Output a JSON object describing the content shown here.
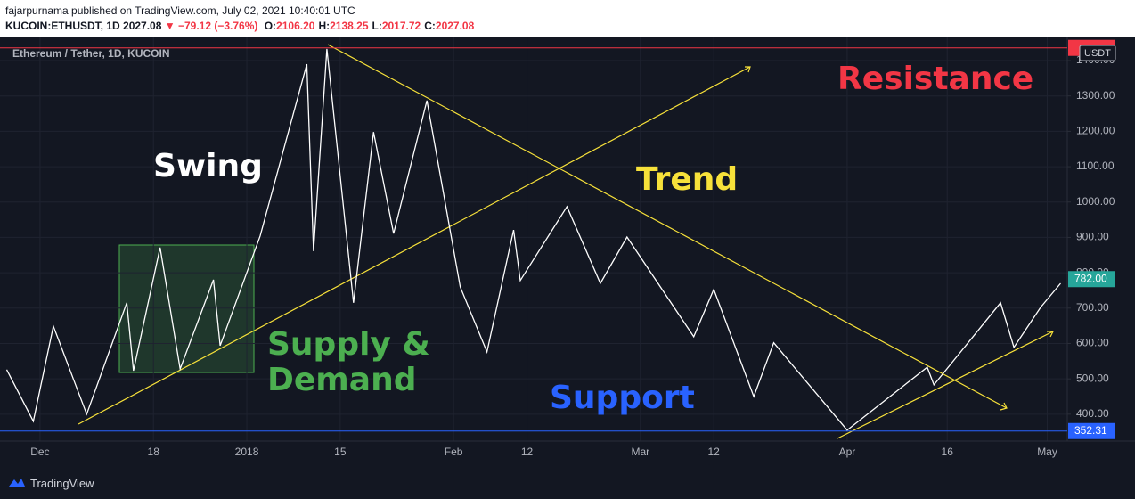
{
  "header": {
    "publisher": "fajarpurnama published on TradingView.com, July 02, 2021 10:40:01 UTC",
    "symbol": "KUCOIN:ETHUSDT, 1D",
    "price": "2027.08",
    "change": "▼ −79.12 (−3.76%)",
    "ohlc": [
      {
        "key": "O:",
        "value": "2106.20"
      },
      {
        "key": "H:",
        "value": "2138.25"
      },
      {
        "key": "L:",
        "value": "2017.72"
      },
      {
        "key": "C:",
        "value": "2027.08"
      }
    ]
  },
  "chart_data": {
    "type": "line",
    "title": "Ethereum / Tether, 1D, KUCOIN",
    "currency": "USDT",
    "color": "#ffffff",
    "x": [
      "2017-11-26",
      "2017-11-30",
      "2017-12-03",
      "2017-12-08",
      "2017-12-14",
      "2017-12-15",
      "2017-12-19",
      "2017-12-22",
      "2017-12-27",
      "2017-12-28",
      "2018-01-03",
      "2018-01-10",
      "2018-01-11",
      "2018-01-13",
      "2018-01-17",
      "2018-01-20",
      "2018-01-23",
      "2018-01-28",
      "2018-02-02",
      "2018-02-06",
      "2018-02-10",
      "2018-02-11",
      "2018-02-18",
      "2018-02-23",
      "2018-02-27",
      "2018-03-09",
      "2018-03-12",
      "2018-03-18",
      "2018-03-21",
      "2018-04-01",
      "2018-04-13",
      "2018-04-14",
      "2018-04-24",
      "2018-04-26",
      "2018-04-30",
      "2018-05-03"
    ],
    "values": [
      526,
      380,
      649,
      400,
      715,
      523,
      871,
      528,
      780,
      594,
      904,
      1390,
      861,
      1433,
      715,
      1198,
      911,
      1287,
      760,
      576,
      921,
      778,
      987,
      770,
      901,
      619,
      753,
      450,
      602,
      355,
      533,
      483,
      715,
      589,
      702,
      770
    ],
    "xlim": [
      "2017-11-25",
      "2018-05-04"
    ],
    "xticks": [
      {
        "value": "2017-12-01",
        "label": "Dec"
      },
      {
        "value": "2017-12-18",
        "label": "18"
      },
      {
        "value": "2018-01-01",
        "label": "2018"
      },
      {
        "value": "2018-01-15",
        "label": "15"
      },
      {
        "value": "2018-02-01",
        "label": "Feb"
      },
      {
        "value": "2018-02-12",
        "label": "12"
      },
      {
        "value": "2018-03-01",
        "label": "Mar"
      },
      {
        "value": "2018-03-12",
        "label": "12"
      },
      {
        "value": "2018-04-01",
        "label": "Apr"
      },
      {
        "value": "2018-04-16",
        "label": "16"
      },
      {
        "value": "2018-05-01",
        "label": "May"
      }
    ],
    "ylim": [
      324,
      1458
    ],
    "yticks": [
      {
        "value": 400,
        "label": "400.00"
      },
      {
        "value": 500,
        "label": "500.00"
      },
      {
        "value": 600,
        "label": "600.00"
      },
      {
        "value": 700,
        "label": "700.00"
      },
      {
        "value": 800,
        "label": "800.00"
      },
      {
        "value": 900,
        "label": "900.00"
      },
      {
        "value": 1000,
        "label": "1000.00"
      },
      {
        "value": 1100,
        "label": "1100.00"
      },
      {
        "value": 1200,
        "label": "1200.00"
      },
      {
        "value": 1300,
        "label": "1300.00"
      },
      {
        "value": 1400,
        "label": "1400.00"
      }
    ],
    "grid": true,
    "resistance": {
      "value": 1436,
      "color": "#f23645"
    },
    "support": {
      "value": 352.31,
      "color": "#2962ff"
    },
    "last_price": {
      "value": 782,
      "label": "782.00",
      "color": "#26a69a"
    },
    "annotations": [
      {
        "text": "Resistance",
        "color": "#f23645"
      },
      {
        "text": "Swing",
        "color": "#ffffff"
      },
      {
        "text": "Trend",
        "color": "#f7e13a"
      },
      {
        "lines": [
          "Supply &",
          "Demand"
        ],
        "color": "#4caf50"
      },
      {
        "text": "Support",
        "color": "#2962ff"
      }
    ]
  },
  "footer": {
    "brand": "TradingView"
  }
}
